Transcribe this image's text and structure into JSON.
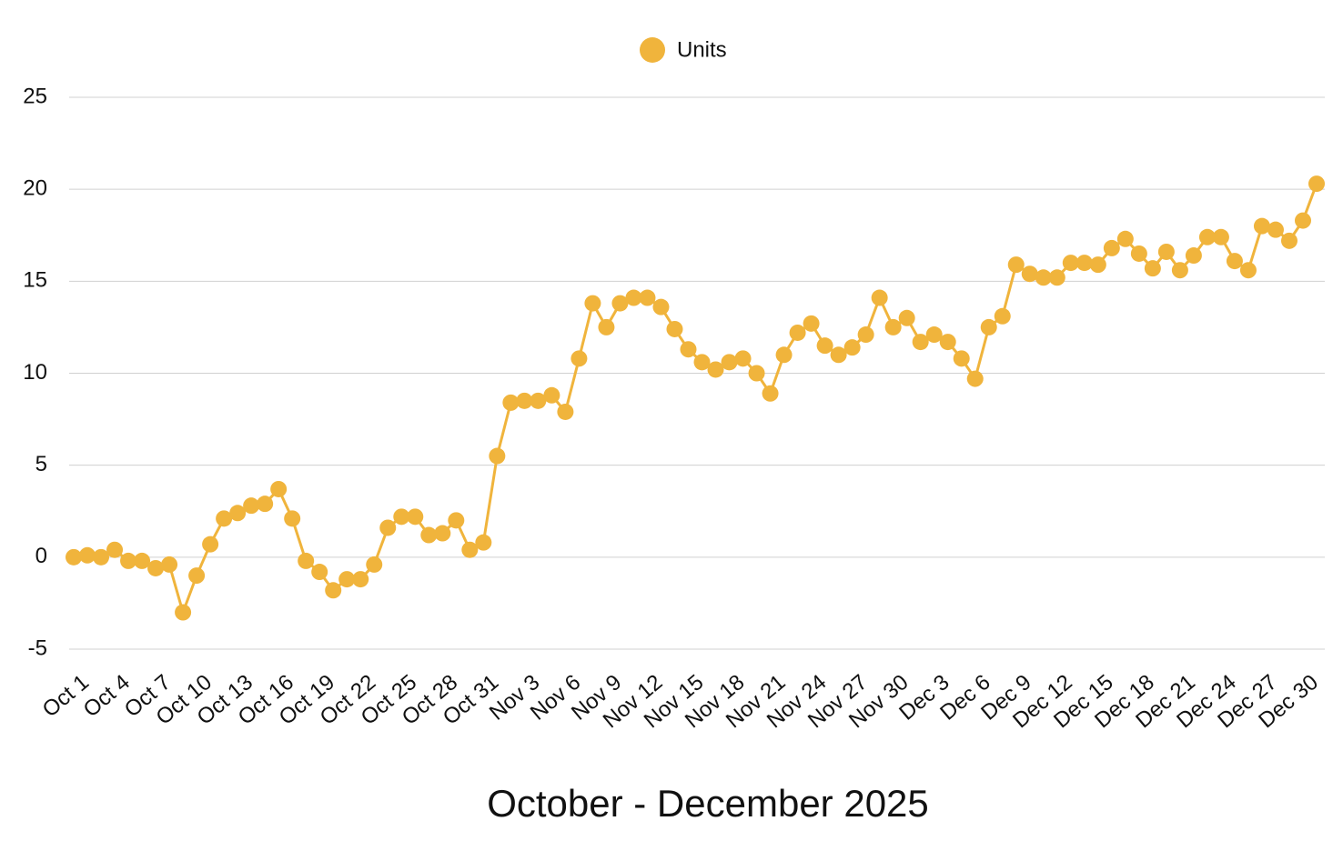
{
  "chart_data": {
    "type": "line",
    "x_title": "October - December 2025",
    "categories": [
      "Oct 1",
      null,
      null,
      "Oct 4",
      null,
      null,
      "Oct 7",
      null,
      null,
      "Oct 10",
      null,
      null,
      "Oct 13",
      null,
      null,
      "Oct 16",
      null,
      null,
      "Oct 19",
      null,
      null,
      "Oct 22",
      null,
      null,
      "Oct 25",
      null,
      null,
      "Oct 28",
      null,
      null,
      "Oct 31",
      null,
      null,
      "Nov 3",
      null,
      null,
      "Nov 6",
      null,
      null,
      "Nov 9",
      null,
      null,
      "Nov 12",
      null,
      null,
      "Nov 15",
      null,
      null,
      "Nov 18",
      null,
      null,
      "Nov 21",
      null,
      null,
      "Nov 24",
      null,
      null,
      "Nov 27",
      null,
      null,
      "Nov 30",
      null,
      null,
      "Dec 3",
      null,
      null,
      "Dec 6",
      null,
      null,
      "Dec 9",
      null,
      null,
      "Dec 12",
      null,
      null,
      "Dec 15",
      null,
      null,
      "Dec 18",
      null,
      null,
      "Dec 21",
      null,
      null,
      "Dec 24",
      null,
      null,
      "Dec 27",
      null,
      null,
      "Dec 30",
      null
    ],
    "series": [
      {
        "name": "Units",
        "color": "#f0b43c",
        "values": [
          0,
          0.1,
          0,
          0.4,
          -0.2,
          -0.2,
          -0.6,
          -0.4,
          -3.0,
          -1.0,
          0.7,
          2.1,
          2.4,
          2.8,
          2.9,
          3.7,
          2.1,
          -0.2,
          -0.8,
          -1.8,
          -1.2,
          -1.2,
          -0.4,
          1.6,
          2.2,
          2.2,
          1.2,
          1.3,
          2.0,
          0.4,
          0.8,
          5.5,
          8.4,
          8.5,
          8.5,
          8.8,
          7.9,
          10.8,
          13.8,
          12.5,
          13.8,
          14.1,
          14.1,
          13.6,
          12.4,
          11.3,
          10.6,
          10.2,
          10.6,
          10.8,
          10.0,
          8.9,
          11.0,
          12.2,
          12.7,
          11.5,
          11.0,
          11.4,
          12.1,
          14.1,
          12.5,
          13.0,
          11.7,
          12.1,
          11.7,
          10.8,
          9.7,
          12.5,
          13.1,
          15.9,
          15.4,
          15.2,
          15.2,
          16.0,
          16.0,
          15.9,
          16.8,
          17.3,
          16.5,
          15.7,
          16.6,
          15.6,
          16.4,
          17.4,
          17.4,
          16.1,
          15.6,
          18.0,
          17.8,
          17.2,
          18.3,
          20.3
        ]
      }
    ],
    "ylim": [
      -5,
      25
    ],
    "yticks": [
      -5,
      0,
      5,
      10,
      15,
      20,
      25
    ],
    "grid": true,
    "legend": "top"
  }
}
